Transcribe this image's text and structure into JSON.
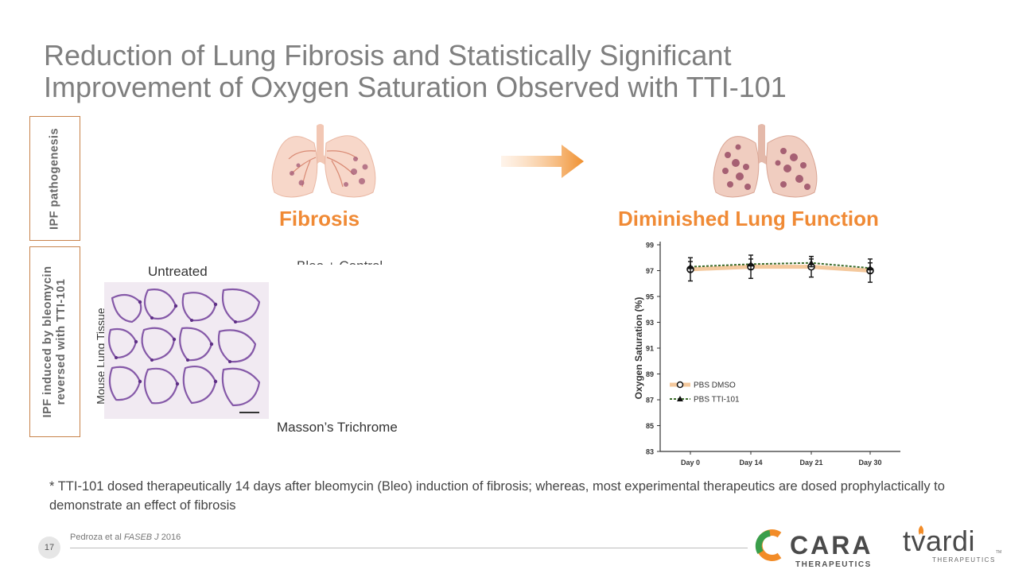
{
  "title": {
    "line1": "Reduction of Lung Fibrosis and Statistically Significant",
    "line2": "Improvement of Oxygen Saturation Observed with TTI-101"
  },
  "side_labels": {
    "box1": "IPF pathogenesis",
    "box2_line1": "IPF induced by bleomycin",
    "box2_line2": "reversed with TTI-101"
  },
  "headings": {
    "fibrosis": "Fibrosis",
    "diminished": "Diminished Lung Function"
  },
  "panel": {
    "untreated": "Untreated",
    "bleo_control": "Bleo + Control",
    "tissue_label": "Mouse Lung Tissue",
    "stain_label": "Masson’s Trichrome"
  },
  "icons": {
    "lung_left": "lungs-icon",
    "lung_right": "lungs-fibrotic-icon",
    "arrow": "arrow-right-icon",
    "cara_logo": "cara-logo-icon",
    "tvardi_flame": "flame-icon"
  },
  "colors": {
    "title": "#7f7f7f",
    "accent_orange": "#f08a35",
    "box_border": "#c8824a",
    "series_dmso": "#f4c89c",
    "series_tti": "#3a6b2a",
    "stain": "#7a4aa0"
  },
  "chart_data": {
    "type": "line",
    "categories": [
      "Day 0",
      "Day 14",
      "Day 21",
      "Day 30"
    ],
    "ylabel": "Oxygen Saturation (%)",
    "ylim": [
      83,
      99
    ],
    "yticks": [
      83,
      85,
      87,
      89,
      91,
      93,
      95,
      97,
      99
    ],
    "legend_position": "left",
    "series": [
      {
        "name": "PBS DMSO",
        "values": [
          97.1,
          97.3,
          97.3,
          97.0
        ],
        "errors": [
          0.9,
          0.9,
          0.8,
          0.9
        ],
        "marker": "circle"
      },
      {
        "name": "PBS TTI-101",
        "values": [
          97.3,
          97.5,
          97.6,
          97.2
        ],
        "errors": [
          0.4,
          0.4,
          0.3,
          0.4
        ],
        "marker": "triangle"
      }
    ]
  },
  "footnote": "* TTI-101 dosed therapeutically 14 days after bleomycin (Bleo) induction of fibrosis; whereas, most experimental therapeutics are dosed prophylactically to demonstrate an effect of fibrosis",
  "footer": {
    "page_number": "17",
    "citation_authors": "Pedroza et al ",
    "citation_journal": "FASEB J",
    "citation_year": " 2016",
    "cara_word": "CARA",
    "cara_sub": "THERAPEUTICS",
    "tvardi_word": "tvardi",
    "tvardi_sub": "THERAPEUTICS",
    "tvardi_tm": "TM"
  }
}
